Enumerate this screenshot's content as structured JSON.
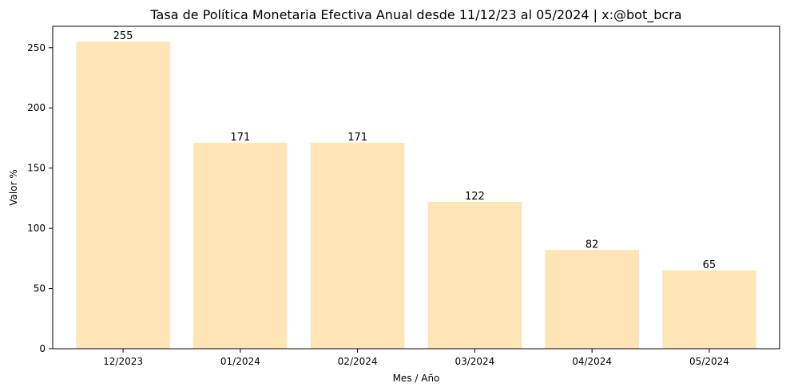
{
  "chart_data": {
    "type": "bar",
    "title": "Tasa de Política Monetaria Efectiva Anual desde 11/12/23 al 05/2024 | x:@bot_bcra",
    "xlabel": "Mes / Año",
    "ylabel": "Valor %",
    "categories": [
      "12/2023",
      "01/2024",
      "02/2024",
      "03/2024",
      "04/2024",
      "05/2024"
    ],
    "values": [
      255,
      171,
      171,
      122,
      82,
      65
    ],
    "data_labels": [
      "255",
      "171",
      "171",
      "122",
      "82",
      "65"
    ],
    "yticks": [
      0,
      50,
      100,
      150,
      200,
      250
    ],
    "ylim": [
      0,
      267.75
    ],
    "grid": false,
    "legend": "none",
    "bar_color": "#ffe4b5"
  }
}
